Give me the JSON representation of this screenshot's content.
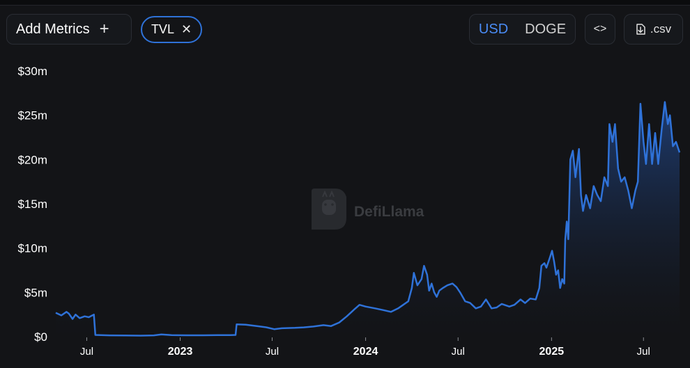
{
  "toolbar": {
    "add_metrics_label": "Add Metrics",
    "add_metrics_icon": "plus-icon",
    "metric_chip_label": "TVL",
    "metric_chip_remove_icon": "close-icon",
    "denominations": [
      "USD",
      "DOGE"
    ],
    "active_denomination": "USD",
    "embed_icon": "code-icon",
    "csv_label": ".csv",
    "csv_icon": "download-icon"
  },
  "watermark": {
    "text": "DefiLlama",
    "icon": "llama-logo-icon"
  },
  "colors": {
    "background": "#131417",
    "line": "#2f72d8",
    "area_top": "#1f3f78",
    "accent": "#4a8cf6"
  },
  "chart_data": {
    "type": "area",
    "title": "",
    "xlabel": "",
    "ylabel": "",
    "unit": "USD",
    "ylim": [
      0,
      30000000
    ],
    "y_ticks": [
      {
        "value": 0,
        "label": "$0"
      },
      {
        "value": 5000000,
        "label": "$5m"
      },
      {
        "value": 10000000,
        "label": "$10m"
      },
      {
        "value": 15000000,
        "label": "$15m"
      },
      {
        "value": 20000000,
        "label": "$20m"
      },
      {
        "value": 25000000,
        "label": "$25m"
      },
      {
        "value": 30000000,
        "label": "$30m"
      }
    ],
    "x_range": [
      "2022-05-01",
      "2025-09-10"
    ],
    "x_ticks": [
      {
        "date": "2022-07-01",
        "label": "Jul",
        "bold": false
      },
      {
        "date": "2023-01-01",
        "label": "2023",
        "bold": true
      },
      {
        "date": "2023-07-01",
        "label": "Jul",
        "bold": false
      },
      {
        "date": "2024-01-01",
        "label": "2024",
        "bold": true
      },
      {
        "date": "2024-07-01",
        "label": "Jul",
        "bold": false
      },
      {
        "date": "2025-01-01",
        "label": "2025",
        "bold": true
      },
      {
        "date": "2025-07-01",
        "label": "Jul",
        "bold": false
      }
    ],
    "grid": false,
    "legend": "none",
    "series": [
      {
        "points": [
          [
            "2022-05-01",
            2700000
          ],
          [
            "2022-05-12",
            2400000
          ],
          [
            "2022-05-22",
            2800000
          ],
          [
            "2022-05-27",
            2600000
          ],
          [
            "2022-06-03",
            2000000
          ],
          [
            "2022-06-09",
            2500000
          ],
          [
            "2022-06-17",
            2100000
          ],
          [
            "2022-06-27",
            2300000
          ],
          [
            "2022-07-05",
            2200000
          ],
          [
            "2022-07-15",
            2500000
          ],
          [
            "2022-07-18",
            200000
          ],
          [
            "2022-08-15",
            150000
          ],
          [
            "2022-09-15",
            130000
          ],
          [
            "2022-10-15",
            120000
          ],
          [
            "2022-11-10",
            150000
          ],
          [
            "2022-11-25",
            250000
          ],
          [
            "2022-12-15",
            170000
          ],
          [
            "2023-01-15",
            160000
          ],
          [
            "2023-02-15",
            160000
          ],
          [
            "2023-03-15",
            170000
          ],
          [
            "2023-04-10",
            180000
          ],
          [
            "2023-04-20",
            200000
          ],
          [
            "2023-04-22",
            1400000
          ],
          [
            "2023-05-10",
            1350000
          ],
          [
            "2023-06-01",
            1200000
          ],
          [
            "2023-06-20",
            1050000
          ],
          [
            "2023-07-05",
            850000
          ],
          [
            "2023-07-20",
            950000
          ],
          [
            "2023-08-15",
            1000000
          ],
          [
            "2023-09-01",
            1050000
          ],
          [
            "2023-09-20",
            1150000
          ],
          [
            "2023-10-10",
            1300000
          ],
          [
            "2023-10-25",
            1200000
          ],
          [
            "2023-11-10",
            1600000
          ],
          [
            "2023-11-25",
            2300000
          ],
          [
            "2023-12-10",
            3100000
          ],
          [
            "2023-12-20",
            3600000
          ],
          [
            "2024-01-01",
            3400000
          ],
          [
            "2024-01-20",
            3200000
          ],
          [
            "2024-02-05",
            3000000
          ],
          [
            "2024-02-20",
            2800000
          ],
          [
            "2024-03-05",
            3200000
          ],
          [
            "2024-03-15",
            3600000
          ],
          [
            "2024-03-25",
            4000000
          ],
          [
            "2024-04-01",
            5500000
          ],
          [
            "2024-04-05",
            7200000
          ],
          [
            "2024-04-12",
            5800000
          ],
          [
            "2024-04-20",
            6500000
          ],
          [
            "2024-04-25",
            8000000
          ],
          [
            "2024-05-01",
            7000000
          ],
          [
            "2024-05-05",
            5200000
          ],
          [
            "2024-05-10",
            6000000
          ],
          [
            "2024-05-15",
            5000000
          ],
          [
            "2024-05-20",
            4500000
          ],
          [
            "2024-05-25",
            5200000
          ],
          [
            "2024-06-01",
            5500000
          ],
          [
            "2024-06-10",
            5800000
          ],
          [
            "2024-06-20",
            6000000
          ],
          [
            "2024-06-28",
            5600000
          ],
          [
            "2024-07-05",
            5000000
          ],
          [
            "2024-07-15",
            4000000
          ],
          [
            "2024-07-25",
            3800000
          ],
          [
            "2024-08-05",
            3200000
          ],
          [
            "2024-08-15",
            3400000
          ],
          [
            "2024-08-25",
            4200000
          ],
          [
            "2024-09-05",
            3200000
          ],
          [
            "2024-09-15",
            3300000
          ],
          [
            "2024-09-25",
            3700000
          ],
          [
            "2024-10-10",
            3400000
          ],
          [
            "2024-10-20",
            3600000
          ],
          [
            "2024-11-01",
            4200000
          ],
          [
            "2024-11-10",
            3800000
          ],
          [
            "2024-11-20",
            4300000
          ],
          [
            "2024-12-01",
            4200000
          ],
          [
            "2024-12-08",
            5500000
          ],
          [
            "2024-12-12",
            8000000
          ],
          [
            "2024-12-18",
            8300000
          ],
          [
            "2024-12-22",
            7800000
          ],
          [
            "2024-12-28",
            8800000
          ],
          [
            "2025-01-02",
            9700000
          ],
          [
            "2025-01-06",
            8500000
          ],
          [
            "2025-01-10",
            7000000
          ],
          [
            "2025-01-14",
            7500000
          ],
          [
            "2025-01-18",
            5500000
          ],
          [
            "2025-01-22",
            6500000
          ],
          [
            "2025-01-26",
            6000000
          ],
          [
            "2025-01-28",
            11000000
          ],
          [
            "2025-01-31",
            13000000
          ],
          [
            "2025-02-03",
            11000000
          ],
          [
            "2025-02-07",
            20000000
          ],
          [
            "2025-02-12",
            21000000
          ],
          [
            "2025-02-17",
            18000000
          ],
          [
            "2025-02-24",
            21200000
          ],
          [
            "2025-02-28",
            16000000
          ],
          [
            "2025-03-04",
            14200000
          ],
          [
            "2025-03-10",
            16000000
          ],
          [
            "2025-03-18",
            14500000
          ],
          [
            "2025-03-25",
            17000000
          ],
          [
            "2025-04-01",
            16000000
          ],
          [
            "2025-04-08",
            15300000
          ],
          [
            "2025-04-15",
            18000000
          ],
          [
            "2025-04-22",
            17000000
          ],
          [
            "2025-04-25",
            24000000
          ],
          [
            "2025-05-01",
            22000000
          ],
          [
            "2025-05-06",
            24000000
          ],
          [
            "2025-05-12",
            19000000
          ],
          [
            "2025-05-18",
            17500000
          ],
          [
            "2025-05-25",
            18000000
          ],
          [
            "2025-06-01",
            16500000
          ],
          [
            "2025-06-08",
            14500000
          ],
          [
            "2025-06-15",
            16500000
          ],
          [
            "2025-06-20",
            17500000
          ],
          [
            "2025-06-25",
            26300000
          ],
          [
            "2025-07-01",
            22000000
          ],
          [
            "2025-07-06",
            19500000
          ],
          [
            "2025-07-12",
            24000000
          ],
          [
            "2025-07-18",
            19500000
          ],
          [
            "2025-07-24",
            23000000
          ],
          [
            "2025-07-30",
            19500000
          ],
          [
            "2025-08-06",
            23500000
          ],
          [
            "2025-08-12",
            26500000
          ],
          [
            "2025-08-18",
            24000000
          ],
          [
            "2025-08-22",
            25000000
          ],
          [
            "2025-08-28",
            21500000
          ],
          [
            "2025-09-03",
            22000000
          ],
          [
            "2025-09-10",
            20800000
          ]
        ]
      }
    ]
  }
}
